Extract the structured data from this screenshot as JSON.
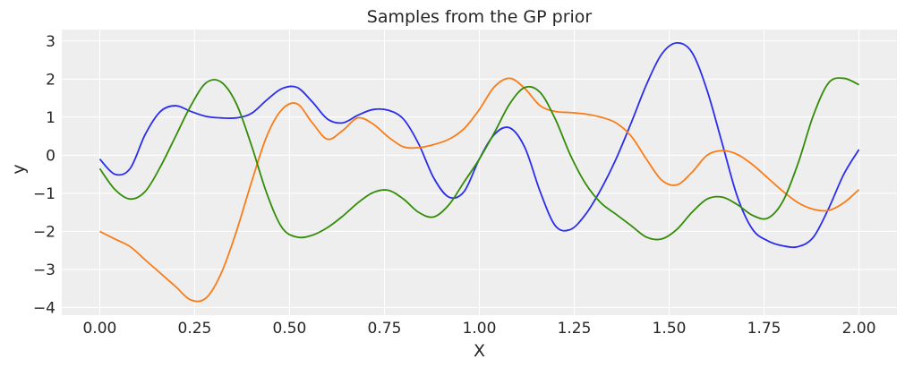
{
  "chart_data": {
    "type": "line",
    "title": "Samples from the GP prior",
    "xlabel": "X",
    "ylabel": "y",
    "xlim": [
      -0.1,
      2.1
    ],
    "ylim": [
      -4.2,
      3.3
    ],
    "xticks": [
      0.0,
      0.25,
      0.5,
      0.75,
      1.0,
      1.25,
      1.5,
      1.75,
      2.0
    ],
    "xtick_labels": [
      "0.00",
      "0.25",
      "0.50",
      "0.75",
      "1.00",
      "1.25",
      "1.50",
      "1.75",
      "2.00"
    ],
    "yticks": [
      3,
      2,
      1,
      0,
      -1,
      -2,
      -3,
      -4
    ],
    "ytick_labels": [
      "3",
      "2",
      "1",
      "0",
      "−1",
      "−2",
      "−3",
      "−4"
    ],
    "grid": true,
    "colors": {
      "background": "#eeeeee",
      "grid": "#ffffff"
    },
    "series": [
      {
        "color": "#2a2eec",
        "x": [
          0.0,
          0.04,
          0.08,
          0.12,
          0.16,
          0.2,
          0.24,
          0.28,
          0.32,
          0.36,
          0.4,
          0.44,
          0.48,
          0.52,
          0.56,
          0.6,
          0.64,
          0.68,
          0.72,
          0.76,
          0.8,
          0.84,
          0.88,
          0.92,
          0.96,
          1.0,
          1.04,
          1.08,
          1.12,
          1.16,
          1.2,
          1.24,
          1.28,
          1.32,
          1.36,
          1.4,
          1.44,
          1.48,
          1.52,
          1.56,
          1.6,
          1.64,
          1.68,
          1.72,
          1.76,
          1.8,
          1.84,
          1.88,
          1.92,
          1.96,
          2.0
        ],
        "y": [
          -0.1,
          -0.5,
          -0.35,
          0.55,
          1.15,
          1.3,
          1.15,
          1.02,
          0.98,
          0.98,
          1.1,
          1.45,
          1.75,
          1.78,
          1.4,
          0.95,
          0.85,
          1.05,
          1.2,
          1.18,
          0.95,
          0.3,
          -0.6,
          -1.1,
          -0.95,
          -0.1,
          0.55,
          0.72,
          0.2,
          -0.95,
          -1.85,
          -1.95,
          -1.55,
          -0.9,
          -0.1,
          0.85,
          1.85,
          2.65,
          2.95,
          2.7,
          1.7,
          0.3,
          -1.1,
          -1.95,
          -2.25,
          -2.38,
          -2.4,
          -2.15,
          -1.4,
          -0.5,
          0.15
        ]
      },
      {
        "color": "#fa7c17",
        "x": [
          0.0,
          0.04,
          0.08,
          0.12,
          0.16,
          0.2,
          0.24,
          0.28,
          0.32,
          0.36,
          0.4,
          0.44,
          0.48,
          0.52,
          0.56,
          0.6,
          0.64,
          0.68,
          0.72,
          0.76,
          0.8,
          0.84,
          0.88,
          0.92,
          0.96,
          1.0,
          1.04,
          1.08,
          1.12,
          1.16,
          1.2,
          1.24,
          1.28,
          1.32,
          1.36,
          1.4,
          1.44,
          1.48,
          1.52,
          1.56,
          1.6,
          1.64,
          1.68,
          1.72,
          1.76,
          1.8,
          1.84,
          1.88,
          1.92,
          1.96,
          2.0
        ],
        "y": [
          -2.0,
          -2.2,
          -2.4,
          -2.75,
          -3.1,
          -3.45,
          -3.8,
          -3.75,
          -3.1,
          -2.0,
          -0.7,
          0.5,
          1.2,
          1.35,
          0.85,
          0.42,
          0.65,
          0.98,
          0.82,
          0.48,
          0.22,
          0.2,
          0.28,
          0.42,
          0.7,
          1.2,
          1.8,
          2.02,
          1.75,
          1.3,
          1.15,
          1.12,
          1.08,
          1.0,
          0.85,
          0.5,
          -0.1,
          -0.65,
          -0.78,
          -0.45,
          0.0,
          0.12,
          0.02,
          -0.25,
          -0.6,
          -0.95,
          -1.25,
          -1.42,
          -1.45,
          -1.25,
          -0.9
        ]
      },
      {
        "color": "#328c06",
        "x": [
          0.0,
          0.04,
          0.08,
          0.12,
          0.16,
          0.2,
          0.24,
          0.28,
          0.32,
          0.36,
          0.4,
          0.44,
          0.48,
          0.52,
          0.56,
          0.6,
          0.64,
          0.68,
          0.72,
          0.76,
          0.8,
          0.84,
          0.88,
          0.92,
          0.96,
          1.0,
          1.04,
          1.08,
          1.12,
          1.16,
          1.2,
          1.24,
          1.28,
          1.32,
          1.36,
          1.4,
          1.44,
          1.48,
          1.52,
          1.56,
          1.6,
          1.64,
          1.68,
          1.72,
          1.76,
          1.8,
          1.84,
          1.88,
          1.92,
          1.96,
          2.0
        ],
        "y": [
          -0.35,
          -0.9,
          -1.15,
          -0.95,
          -0.3,
          0.5,
          1.3,
          1.9,
          1.92,
          1.35,
          0.25,
          -1.0,
          -1.9,
          -2.15,
          -2.1,
          -1.9,
          -1.6,
          -1.25,
          -0.98,
          -0.92,
          -1.15,
          -1.5,
          -1.62,
          -1.3,
          -0.7,
          -0.1,
          0.6,
          1.35,
          1.78,
          1.65,
          0.95,
          0.0,
          -0.75,
          -1.25,
          -1.55,
          -1.85,
          -2.15,
          -2.2,
          -1.95,
          -1.5,
          -1.15,
          -1.1,
          -1.3,
          -1.58,
          -1.65,
          -1.2,
          -0.2,
          1.05,
          1.9,
          2.02,
          1.85
        ]
      }
    ]
  }
}
